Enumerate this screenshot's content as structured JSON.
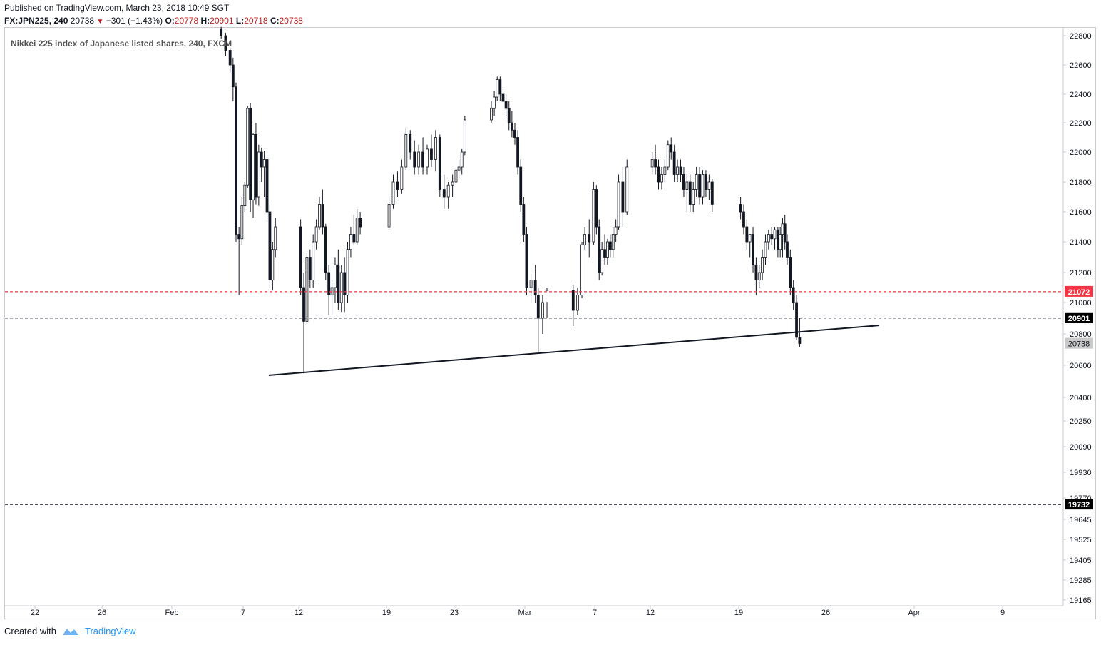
{
  "header": {
    "published": "Published on TradingView.com, March 23, 2018 10:49 SGT",
    "symbol_interval": "FX:JPN225, 240",
    "last": "20738",
    "change": "−301 (−1.43%)",
    "o_label": "O:",
    "o_value": "20778",
    "h_label": "H:",
    "h_value": "20901",
    "l_label": "L:",
    "l_value": "20718",
    "c_label": "C:",
    "c_value": "20738"
  },
  "chart_data": {
    "type": "candlestick",
    "title": "Nikkei 225 index of Japanese listed shares, 240, FXCM",
    "x_tick_labels": [
      "22",
      "26",
      "Feb",
      "7",
      "12",
      "19",
      "23",
      "Mar",
      "7",
      "12",
      "19",
      "26",
      "Apr",
      "9"
    ],
    "y_tick_labels": [
      "22800",
      "22600",
      "22400",
      "22200",
      "22000",
      "21800",
      "21600",
      "21400",
      "21200",
      "21000",
      "20800",
      "20600",
      "20400",
      "20250",
      "20090",
      "19930",
      "19770",
      "19645",
      "19525",
      "19405",
      "19285",
      "19165"
    ],
    "price_lines": [
      {
        "value": 21072,
        "label": "21072",
        "color": "#f23645",
        "style": "dashed"
      },
      {
        "value": 20901,
        "label": "20901",
        "color": "#131722",
        "style": "dashed"
      },
      {
        "value": 19732,
        "label": "19732",
        "color": "#131722",
        "style": "dashed"
      }
    ],
    "last_price": {
      "value": 20738,
      "label": "20738"
    },
    "trendline": {
      "start": {
        "date": "2018-02-09",
        "value": 20538
      },
      "end": {
        "date": "2018-03-29",
        "value": 20854
      }
    },
    "candles": [
      {
        "date": "2018-02-05",
        "o": 22848,
        "h": 22860,
        "l": 22780,
        "c": 22800
      },
      {
        "date": "2018-02-05",
        "o": 22800,
        "h": 22820,
        "l": 22660,
        "c": 22700
      },
      {
        "date": "2018-02-05",
        "o": 22700,
        "h": 22720,
        "l": 22550,
        "c": 22600
      },
      {
        "date": "2018-02-06",
        "o": 22600,
        "h": 22650,
        "l": 22350,
        "c": 22450
      },
      {
        "date": "2018-02-06",
        "o": 22450,
        "h": 22480,
        "l": 21400,
        "c": 21450
      },
      {
        "date": "2018-02-06",
        "o": 21450,
        "h": 21500,
        "l": 21050,
        "c": 21420
      },
      {
        "date": "2018-02-06",
        "o": 21420,
        "h": 21700,
        "l": 21380,
        "c": 21640
      },
      {
        "date": "2018-02-07",
        "o": 21640,
        "h": 21800,
        "l": 21600,
        "c": 21780
      },
      {
        "date": "2018-02-07",
        "o": 21780,
        "h": 22320,
        "l": 21760,
        "c": 22300
      },
      {
        "date": "2018-02-07",
        "o": 22300,
        "h": 22340,
        "l": 21600,
        "c": 21680
      },
      {
        "date": "2018-02-07",
        "o": 21680,
        "h": 22130,
        "l": 21560,
        "c": 22120
      },
      {
        "date": "2018-02-08",
        "o": 22120,
        "h": 22200,
        "l": 21650,
        "c": 21700
      },
      {
        "date": "2018-02-08",
        "o": 21700,
        "h": 22050,
        "l": 21640,
        "c": 22000
      },
      {
        "date": "2018-02-08",
        "o": 22000,
        "h": 22030,
        "l": 21800,
        "c": 21900
      },
      {
        "date": "2018-02-08",
        "o": 21900,
        "h": 22010,
        "l": 21700,
        "c": 21950
      },
      {
        "date": "2018-02-09",
        "o": 21950,
        "h": 21980,
        "l": 21550,
        "c": 21600
      },
      {
        "date": "2018-02-09",
        "o": 21600,
        "h": 21650,
        "l": 21100,
        "c": 21150
      },
      {
        "date": "2018-02-09",
        "o": 21150,
        "h": 21400,
        "l": 21080,
        "c": 21350
      },
      {
        "date": "2018-02-09",
        "o": 21350,
        "h": 21560,
        "l": 21300,
        "c": 21500
      },
      {
        "date": "2018-02-12",
        "o": 21500,
        "h": 21550,
        "l": 21050,
        "c": 21100
      },
      {
        "date": "2018-02-12",
        "o": 21100,
        "h": 21200,
        "l": 20550,
        "c": 20880
      },
      {
        "date": "2018-02-12",
        "o": 20880,
        "h": 21330,
        "l": 20860,
        "c": 21300
      },
      {
        "date": "2018-02-12",
        "o": 21300,
        "h": 21350,
        "l": 21100,
        "c": 21150
      },
      {
        "date": "2018-02-13",
        "o": 21150,
        "h": 21450,
        "l": 21100,
        "c": 21400
      },
      {
        "date": "2018-02-13",
        "o": 21400,
        "h": 21550,
        "l": 21350,
        "c": 21500
      },
      {
        "date": "2018-02-13",
        "o": 21500,
        "h": 21700,
        "l": 21480,
        "c": 21650
      },
      {
        "date": "2018-02-13",
        "o": 21650,
        "h": 21750,
        "l": 21450,
        "c": 21500
      },
      {
        "date": "2018-02-14",
        "o": 21500,
        "h": 21520,
        "l": 21150,
        "c": 21200
      },
      {
        "date": "2018-02-14",
        "o": 21200,
        "h": 21250,
        "l": 20920,
        "c": 21050
      },
      {
        "date": "2018-02-14",
        "o": 21050,
        "h": 21150,
        "l": 20920,
        "c": 21100
      },
      {
        "date": "2018-02-14",
        "o": 21100,
        "h": 21300,
        "l": 21000,
        "c": 21250
      },
      {
        "date": "2018-02-15",
        "o": 21250,
        "h": 21350,
        "l": 20950,
        "c": 21000
      },
      {
        "date": "2018-02-15",
        "o": 21000,
        "h": 21250,
        "l": 20940,
        "c": 21200
      },
      {
        "date": "2018-02-15",
        "o": 21200,
        "h": 21300,
        "l": 20940,
        "c": 21050
      },
      {
        "date": "2018-02-15",
        "o": 21050,
        "h": 21400,
        "l": 21000,
        "c": 21350
      },
      {
        "date": "2018-02-16",
        "o": 21350,
        "h": 21500,
        "l": 21300,
        "c": 21450
      },
      {
        "date": "2018-02-16",
        "o": 21450,
        "h": 21580,
        "l": 21380,
        "c": 21400
      },
      {
        "date": "2018-02-16",
        "o": 21400,
        "h": 21620,
        "l": 21380,
        "c": 21560
      },
      {
        "date": "2018-02-16",
        "o": 21560,
        "h": 21600,
        "l": 21450,
        "c": 21500
      },
      {
        "date": "2018-02-19",
        "o": 21500,
        "h": 21700,
        "l": 21480,
        "c": 21650
      },
      {
        "date": "2018-02-19",
        "o": 21650,
        "h": 21850,
        "l": 21620,
        "c": 21800
      },
      {
        "date": "2018-02-19",
        "o": 21800,
        "h": 21870,
        "l": 21700,
        "c": 21750
      },
      {
        "date": "2018-02-19",
        "o": 21750,
        "h": 21950,
        "l": 21720,
        "c": 21900
      },
      {
        "date": "2018-02-20",
        "o": 21900,
        "h": 22160,
        "l": 21880,
        "c": 22120
      },
      {
        "date": "2018-02-20",
        "o": 22120,
        "h": 22150,
        "l": 21950,
        "c": 22000
      },
      {
        "date": "2018-02-20",
        "o": 22000,
        "h": 22080,
        "l": 21850,
        "c": 21900
      },
      {
        "date": "2018-02-20",
        "o": 21900,
        "h": 22050,
        "l": 21850,
        "c": 22000
      },
      {
        "date": "2018-02-21",
        "o": 22000,
        "h": 22100,
        "l": 21850,
        "c": 21900
      },
      {
        "date": "2018-02-21",
        "o": 21900,
        "h": 22050,
        "l": 21850,
        "c": 22020
      },
      {
        "date": "2018-02-21",
        "o": 22020,
        "h": 22120,
        "l": 21900,
        "c": 21950
      },
      {
        "date": "2018-02-21",
        "o": 21950,
        "h": 22150,
        "l": 21870,
        "c": 22100
      },
      {
        "date": "2018-02-22",
        "o": 22100,
        "h": 22120,
        "l": 21700,
        "c": 21750
      },
      {
        "date": "2018-02-22",
        "o": 21750,
        "h": 21850,
        "l": 21620,
        "c": 21700
      },
      {
        "date": "2018-02-22",
        "o": 21700,
        "h": 21800,
        "l": 21620,
        "c": 21780
      },
      {
        "date": "2018-02-22",
        "o": 21780,
        "h": 21850,
        "l": 21700,
        "c": 21800
      },
      {
        "date": "2018-02-23",
        "o": 21800,
        "h": 21900,
        "l": 21780,
        "c": 21880
      },
      {
        "date": "2018-02-23",
        "o": 21880,
        "h": 21950,
        "l": 21830,
        "c": 21900
      },
      {
        "date": "2018-02-23",
        "o": 21900,
        "h": 22020,
        "l": 21850,
        "c": 22000
      },
      {
        "date": "2018-02-23",
        "o": 22000,
        "h": 22250,
        "l": 21980,
        "c": 22220
      },
      {
        "date": "2018-02-26",
        "o": 22220,
        "h": 22350,
        "l": 22200,
        "c": 22300
      },
      {
        "date": "2018-02-26",
        "o": 22300,
        "h": 22420,
        "l": 22250,
        "c": 22380
      },
      {
        "date": "2018-02-26",
        "o": 22380,
        "h": 22520,
        "l": 22350,
        "c": 22500
      },
      {
        "date": "2018-02-26",
        "o": 22500,
        "h": 22520,
        "l": 22350,
        "c": 22400
      },
      {
        "date": "2018-02-27",
        "o": 22400,
        "h": 22450,
        "l": 22300,
        "c": 22350
      },
      {
        "date": "2018-02-27",
        "o": 22350,
        "h": 22400,
        "l": 22250,
        "c": 22300
      },
      {
        "date": "2018-02-27",
        "o": 22300,
        "h": 22350,
        "l": 22150,
        "c": 22200
      },
      {
        "date": "2018-02-27",
        "o": 22200,
        "h": 22280,
        "l": 22100,
        "c": 22150
      },
      {
        "date": "2018-02-28",
        "o": 22150,
        "h": 22200,
        "l": 22050,
        "c": 22100
      },
      {
        "date": "2018-02-28",
        "o": 22100,
        "h": 22150,
        "l": 21850,
        "c": 21900
      },
      {
        "date": "2018-02-28",
        "o": 21900,
        "h": 21950,
        "l": 21600,
        "c": 21650
      },
      {
        "date": "2018-02-28",
        "o": 21650,
        "h": 21700,
        "l": 21400,
        "c": 21450
      },
      {
        "date": "2018-03-01",
        "o": 21450,
        "h": 21500,
        "l": 21050,
        "c": 21100
      },
      {
        "date": "2018-03-01",
        "o": 21100,
        "h": 21200,
        "l": 21000,
        "c": 21150
      },
      {
        "date": "2018-03-01",
        "o": 21150,
        "h": 21250,
        "l": 21000,
        "c": 21050
      },
      {
        "date": "2018-03-02",
        "o": 21050,
        "h": 21100,
        "l": 20680,
        "c": 20900
      },
      {
        "date": "2018-03-02",
        "o": 20900,
        "h": 21050,
        "l": 20800,
        "c": 21000
      },
      {
        "date": "2018-03-02",
        "o": 21000,
        "h": 21100,
        "l": 20900,
        "c": 21080
      },
      {
        "date": "2018-03-05",
        "o": 21080,
        "h": 21120,
        "l": 20850,
        "c": 20950
      },
      {
        "date": "2018-03-05",
        "o": 20950,
        "h": 21100,
        "l": 20920,
        "c": 21050
      },
      {
        "date": "2018-03-05",
        "o": 21050,
        "h": 21400,
        "l": 21030,
        "c": 21380
      },
      {
        "date": "2018-03-06",
        "o": 21380,
        "h": 21500,
        "l": 21350,
        "c": 21450
      },
      {
        "date": "2018-03-06",
        "o": 21450,
        "h": 21550,
        "l": 21300,
        "c": 21400
      },
      {
        "date": "2018-03-06",
        "o": 21400,
        "h": 21800,
        "l": 21380,
        "c": 21750
      },
      {
        "date": "2018-03-07",
        "o": 21750,
        "h": 21780,
        "l": 21450,
        "c": 21500
      },
      {
        "date": "2018-03-07",
        "o": 21500,
        "h": 21550,
        "l": 21150,
        "c": 21200
      },
      {
        "date": "2018-03-07",
        "o": 21200,
        "h": 21400,
        "l": 21180,
        "c": 21350
      },
      {
        "date": "2018-03-07",
        "o": 21350,
        "h": 21450,
        "l": 21250,
        "c": 21300
      },
      {
        "date": "2018-03-08",
        "o": 21300,
        "h": 21420,
        "l": 21250,
        "c": 21400
      },
      {
        "date": "2018-03-08",
        "o": 21400,
        "h": 21450,
        "l": 21300,
        "c": 21350
      },
      {
        "date": "2018-03-08",
        "o": 21350,
        "h": 21500,
        "l": 21300,
        "c": 21450
      },
      {
        "date": "2018-03-08",
        "o": 21450,
        "h": 21550,
        "l": 21400,
        "c": 21500
      },
      {
        "date": "2018-03-09",
        "o": 21500,
        "h": 21850,
        "l": 21480,
        "c": 21800
      },
      {
        "date": "2018-03-09",
        "o": 21800,
        "h": 21900,
        "l": 21500,
        "c": 21600
      },
      {
        "date": "2018-03-09",
        "o": 21600,
        "h": 21950,
        "l": 21580,
        "c": 21900
      },
      {
        "date": "2018-03-12",
        "o": 21900,
        "h": 22000,
        "l": 21850,
        "c": 21950
      },
      {
        "date": "2018-03-12",
        "o": 21950,
        "h": 22050,
        "l": 21850,
        "c": 21900
      },
      {
        "date": "2018-03-12",
        "o": 21900,
        "h": 21950,
        "l": 21750,
        "c": 21800
      },
      {
        "date": "2018-03-12",
        "o": 21800,
        "h": 21900,
        "l": 21750,
        "c": 21850
      },
      {
        "date": "2018-03-13",
        "o": 21850,
        "h": 21950,
        "l": 21800,
        "c": 21900
      },
      {
        "date": "2018-03-13",
        "o": 21900,
        "h": 22080,
        "l": 21880,
        "c": 22050
      },
      {
        "date": "2018-03-13",
        "o": 22050,
        "h": 22100,
        "l": 21950,
        "c": 22000
      },
      {
        "date": "2018-03-13",
        "o": 22000,
        "h": 22050,
        "l": 21800,
        "c": 21850
      },
      {
        "date": "2018-03-14",
        "o": 21850,
        "h": 21950,
        "l": 21800,
        "c": 21900
      },
      {
        "date": "2018-03-14",
        "o": 21900,
        "h": 21950,
        "l": 21800,
        "c": 21850
      },
      {
        "date": "2018-03-14",
        "o": 21850,
        "h": 21900,
        "l": 21700,
        "c": 21750
      },
      {
        "date": "2018-03-14",
        "o": 21750,
        "h": 21850,
        "l": 21600,
        "c": 21800
      },
      {
        "date": "2018-03-15",
        "o": 21800,
        "h": 21850,
        "l": 21600,
        "c": 21650
      },
      {
        "date": "2018-03-15",
        "o": 21650,
        "h": 21800,
        "l": 21600,
        "c": 21750
      },
      {
        "date": "2018-03-15",
        "o": 21750,
        "h": 21900,
        "l": 21700,
        "c": 21850
      },
      {
        "date": "2018-03-15",
        "o": 21850,
        "h": 21900,
        "l": 21650,
        "c": 21700
      },
      {
        "date": "2018-03-16",
        "o": 21700,
        "h": 21880,
        "l": 21650,
        "c": 21850
      },
      {
        "date": "2018-03-16",
        "o": 21850,
        "h": 21880,
        "l": 21700,
        "c": 21750
      },
      {
        "date": "2018-03-16",
        "o": 21750,
        "h": 21850,
        "l": 21680,
        "c": 21800
      },
      {
        "date": "2018-03-16",
        "o": 21800,
        "h": 21820,
        "l": 21600,
        "c": 21650
      },
      {
        "date": "2018-03-19",
        "o": 21650,
        "h": 21700,
        "l": 21550,
        "c": 21600
      },
      {
        "date": "2018-03-19",
        "o": 21600,
        "h": 21650,
        "l": 21450,
        "c": 21500
      },
      {
        "date": "2018-03-19",
        "o": 21500,
        "h": 21550,
        "l": 21350,
        "c": 21400
      },
      {
        "date": "2018-03-19",
        "o": 21400,
        "h": 21450,
        "l": 21300,
        "c": 21450
      },
      {
        "date": "2018-03-20",
        "o": 21450,
        "h": 21500,
        "l": 21200,
        "c": 21250
      },
      {
        "date": "2018-03-20",
        "o": 21250,
        "h": 21300,
        "l": 21050,
        "c": 21150
      },
      {
        "date": "2018-03-20",
        "o": 21150,
        "h": 21250,
        "l": 21100,
        "c": 21200
      },
      {
        "date": "2018-03-20",
        "o": 21200,
        "h": 21350,
        "l": 21150,
        "c": 21300
      },
      {
        "date": "2018-03-21",
        "o": 21300,
        "h": 21450,
        "l": 21250,
        "c": 21400
      },
      {
        "date": "2018-03-21",
        "o": 21400,
        "h": 21480,
        "l": 21350,
        "c": 21450
      },
      {
        "date": "2018-03-21",
        "o": 21450,
        "h": 21500,
        "l": 21380,
        "c": 21420
      },
      {
        "date": "2018-03-21",
        "o": 21420,
        "h": 21500,
        "l": 21350,
        "c": 21480
      },
      {
        "date": "2018-03-22",
        "o": 21480,
        "h": 21500,
        "l": 21300,
        "c": 21350
      },
      {
        "date": "2018-03-22",
        "o": 21350,
        "h": 21500,
        "l": 21300,
        "c": 21450
      },
      {
        "date": "2018-03-22",
        "o": 21450,
        "h": 21560,
        "l": 21300,
        "c": 21520
      },
      {
        "date": "2018-03-22",
        "o": 21520,
        "h": 21580,
        "l": 21350,
        "c": 21400
      },
      {
        "date": "2018-03-22",
        "o": 21400,
        "h": 21450,
        "l": 21250,
        "c": 21300
      },
      {
        "date": "2018-03-23",
        "o": 21300,
        "h": 21350,
        "l": 21050,
        "c": 21100
      },
      {
        "date": "2018-03-23",
        "o": 21100,
        "h": 21150,
        "l": 20950,
        "c": 21000
      },
      {
        "date": "2018-03-23",
        "o": 21000,
        "h": 21050,
        "l": 20760,
        "c": 20778
      },
      {
        "date": "2018-03-23",
        "o": 20778,
        "h": 20901,
        "l": 20718,
        "c": 20738
      }
    ]
  },
  "footer": {
    "created_with": "Created with",
    "brand": "TradingView"
  }
}
